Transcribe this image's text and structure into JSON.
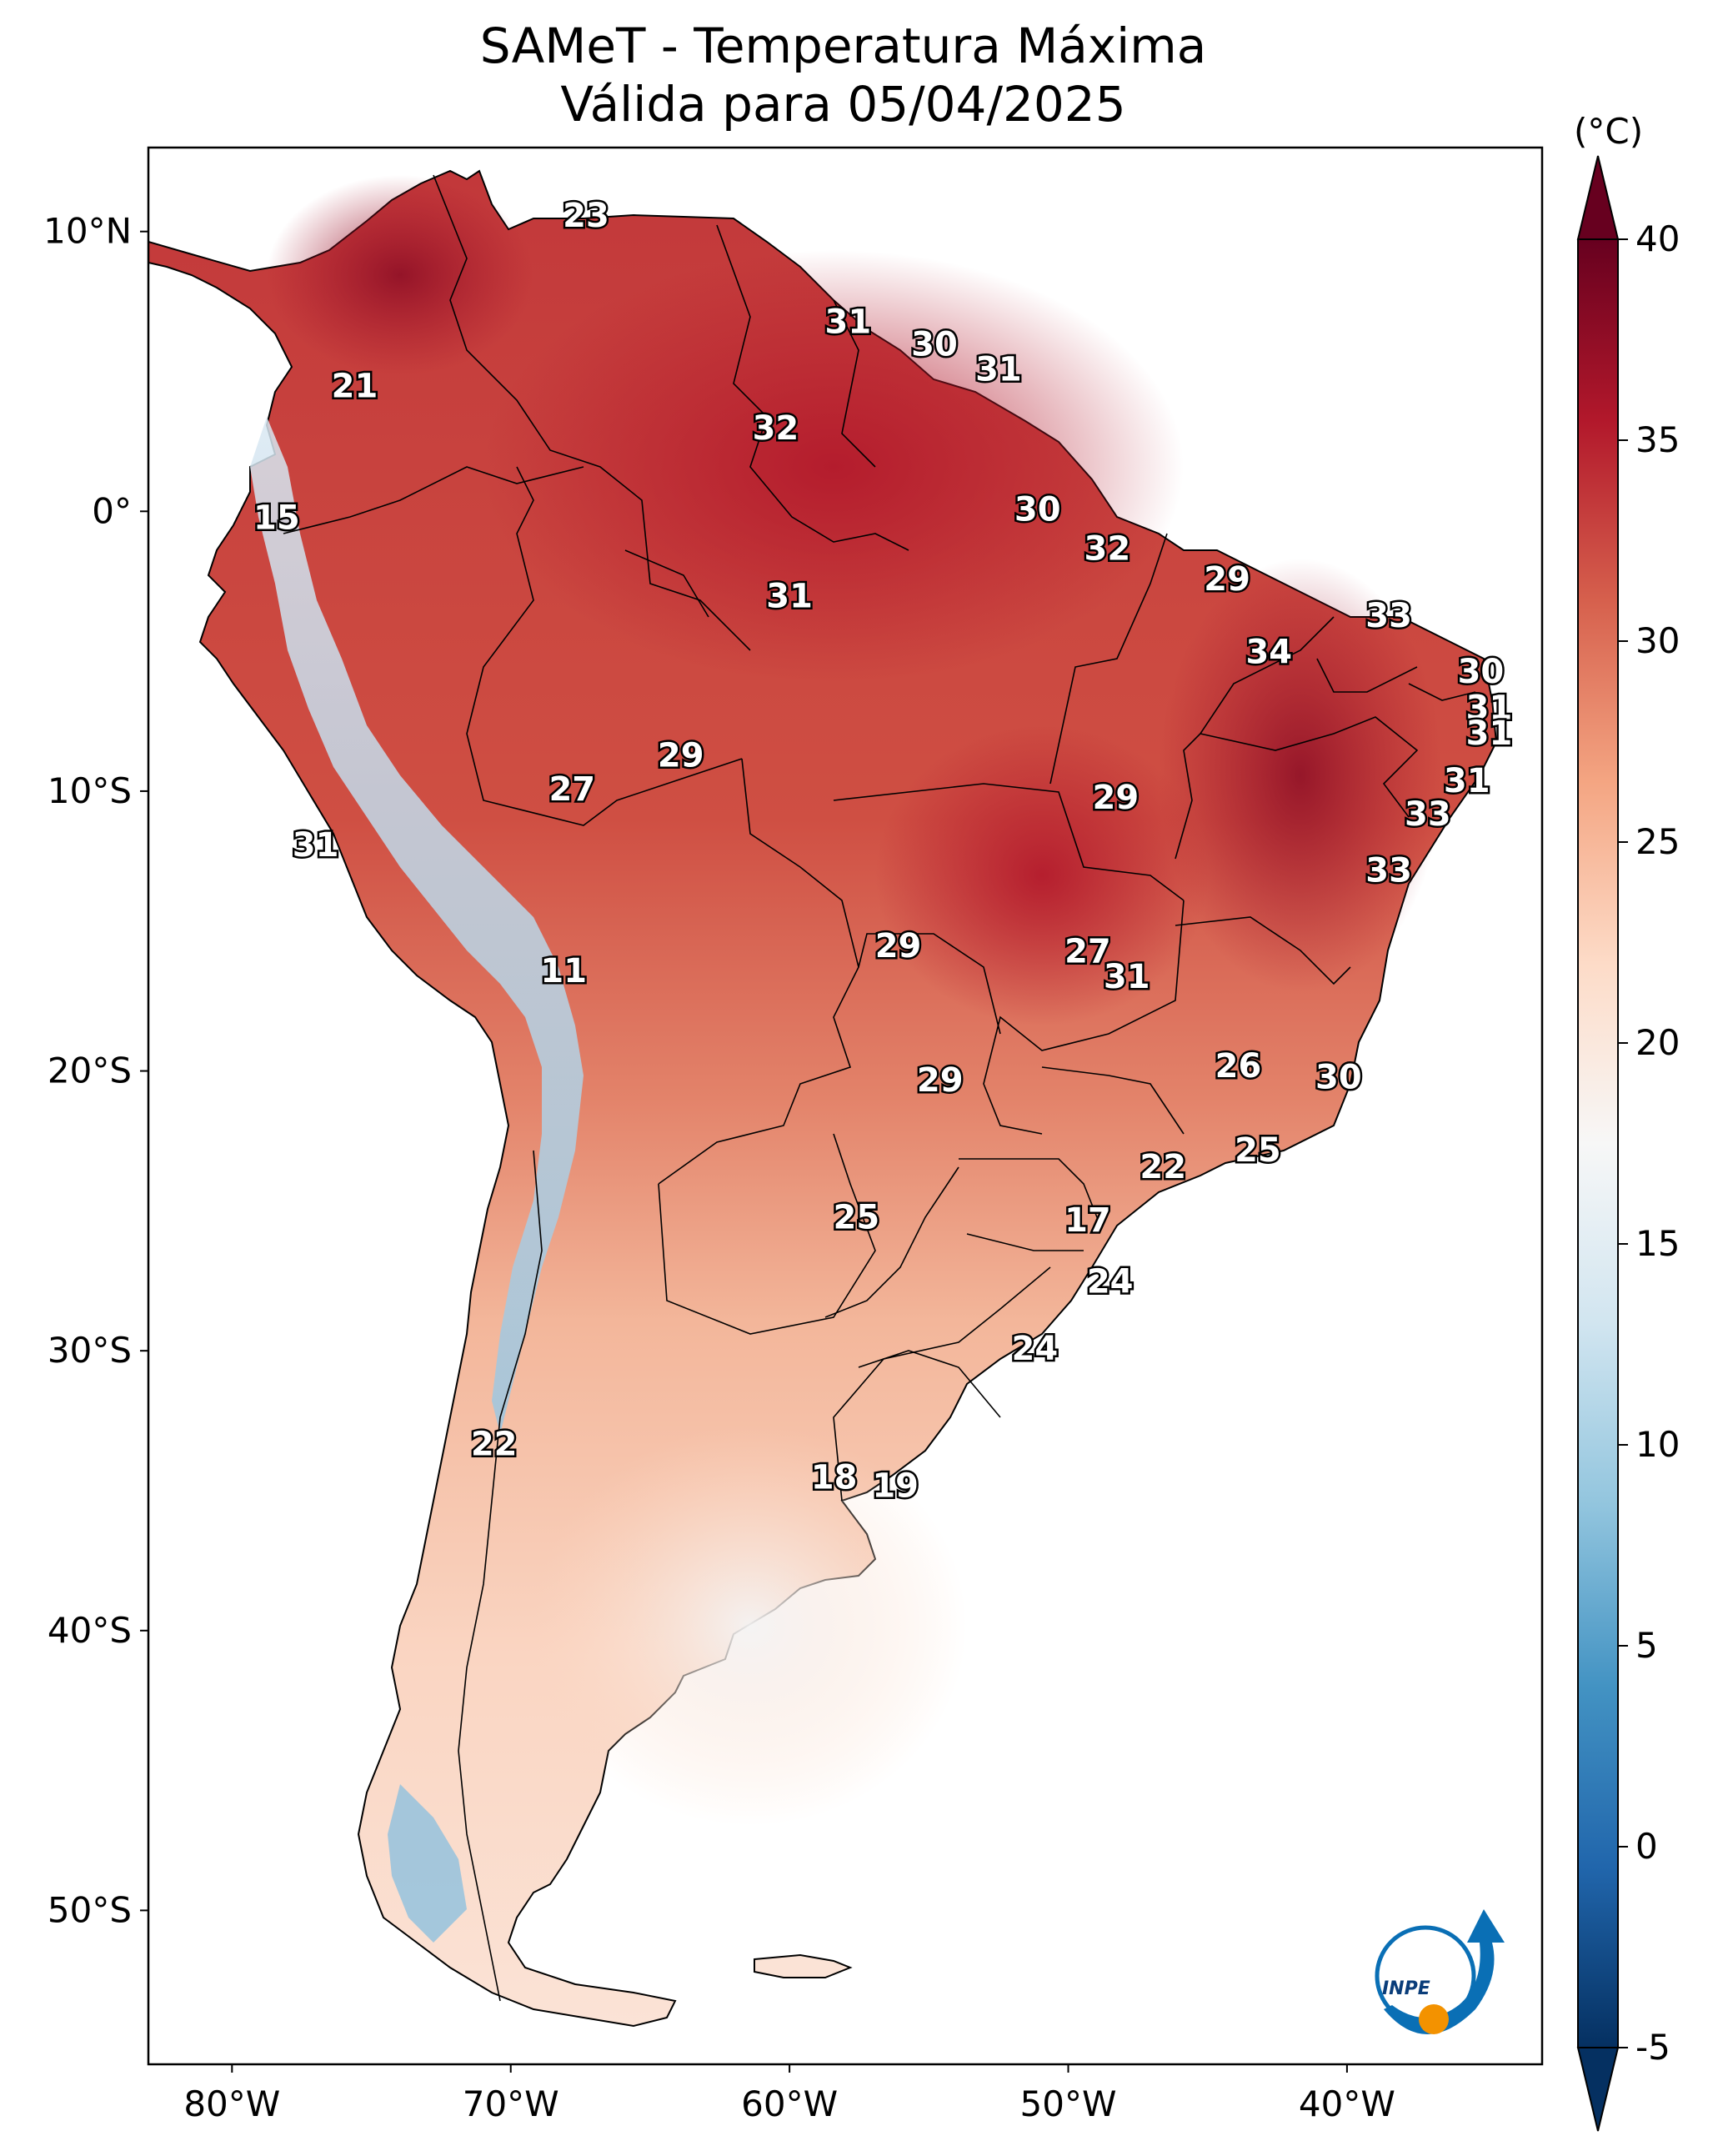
{
  "title": "SAMeT - Temperatura Máxima",
  "subtitle": "Válida para 05/04/2025",
  "colorbar": {
    "unit": "(°C)",
    "min": -5,
    "max": 40,
    "ticks": [
      "-5",
      "0",
      "5",
      "10",
      "15",
      "20",
      "25",
      "30",
      "35",
      "40"
    ],
    "colors": [
      "#053061",
      "#2166ac",
      "#4393c3",
      "#92c5de",
      "#d1e5f0",
      "#f7f7f7",
      "#fddbc7",
      "#f4a582",
      "#d6604d",
      "#b2182b",
      "#67001f"
    ]
  },
  "axes": {
    "lon_ticks": [
      "80°W",
      "70°W",
      "60°W",
      "50°W",
      "40°W"
    ],
    "lat_ticks": [
      "10°N",
      "0°",
      "10°S",
      "20°S",
      "30°S",
      "40°S",
      "50°S"
    ],
    "lon_range": [
      -83,
      -33
    ],
    "lat_range": [
      -55.5,
      13
    ]
  },
  "city_values": [
    {
      "value": "23",
      "lon": -67.3,
      "lat": 10.5
    },
    {
      "value": "31",
      "lon": -57.9,
      "lat": 6.7
    },
    {
      "value": "30",
      "lon": -54.8,
      "lat": 5.9
    },
    {
      "value": "31",
      "lon": -52.5,
      "lat": 5.0
    },
    {
      "value": "21",
      "lon": -75.6,
      "lat": 4.4
    },
    {
      "value": "32",
      "lon": -60.5,
      "lat": 2.9
    },
    {
      "value": "30",
      "lon": -51.1,
      "lat": 0.0
    },
    {
      "value": "15",
      "lon": -78.4,
      "lat": -0.3
    },
    {
      "value": "32",
      "lon": -48.6,
      "lat": -1.4
    },
    {
      "value": "29",
      "lon": -44.3,
      "lat": -2.5
    },
    {
      "value": "31",
      "lon": -60.0,
      "lat": -3.1
    },
    {
      "value": "33",
      "lon": -38.5,
      "lat": -3.8
    },
    {
      "value": "34",
      "lon": -42.8,
      "lat": -5.1
    },
    {
      "value": "30",
      "lon": -35.2,
      "lat": -5.8
    },
    {
      "value": "31",
      "lon": -34.9,
      "lat": -7.1
    },
    {
      "value": "31",
      "lon": -34.9,
      "lat": -8.0
    },
    {
      "value": "29",
      "lon": -63.9,
      "lat": -8.8
    },
    {
      "value": "31",
      "lon": -35.7,
      "lat": -9.7
    },
    {
      "value": "27",
      "lon": -67.8,
      "lat": -10.0
    },
    {
      "value": "29",
      "lon": -48.3,
      "lat": -10.3
    },
    {
      "value": "33",
      "lon": -37.1,
      "lat": -10.9
    },
    {
      "value": "31",
      "lon": -77.0,
      "lat": -12.0
    },
    {
      "value": "33",
      "lon": -38.5,
      "lat": -12.9
    },
    {
      "value": "29",
      "lon": -56.1,
      "lat": -15.6
    },
    {
      "value": "27",
      "lon": -49.3,
      "lat": -15.8
    },
    {
      "value": "11",
      "lon": -68.1,
      "lat": -16.5
    },
    {
      "value": "31",
      "lon": -47.9,
      "lat": -16.7
    },
    {
      "value": "26",
      "lon": -43.9,
      "lat": -19.9
    },
    {
      "value": "30",
      "lon": -40.3,
      "lat": -20.3
    },
    {
      "value": "29",
      "lon": -54.6,
      "lat": -20.4
    },
    {
      "value": "25",
      "lon": -43.2,
      "lat": -22.9
    },
    {
      "value": "22",
      "lon": -46.6,
      "lat": -23.5
    },
    {
      "value": "25",
      "lon": -57.6,
      "lat": -25.3
    },
    {
      "value": "17",
      "lon": -49.3,
      "lat": -25.4
    },
    {
      "value": "24",
      "lon": -48.5,
      "lat": -27.6
    },
    {
      "value": "24",
      "lon": -51.2,
      "lat": -30.0
    },
    {
      "value": "22",
      "lon": -70.6,
      "lat": -33.4
    },
    {
      "value": "18",
      "lon": -58.4,
      "lat": -34.6
    },
    {
      "value": "19",
      "lon": -56.2,
      "lat": -34.9
    }
  ],
  "logo": {
    "text": "INPE",
    "colors": [
      "#0a6fb5",
      "#f39200"
    ]
  }
}
